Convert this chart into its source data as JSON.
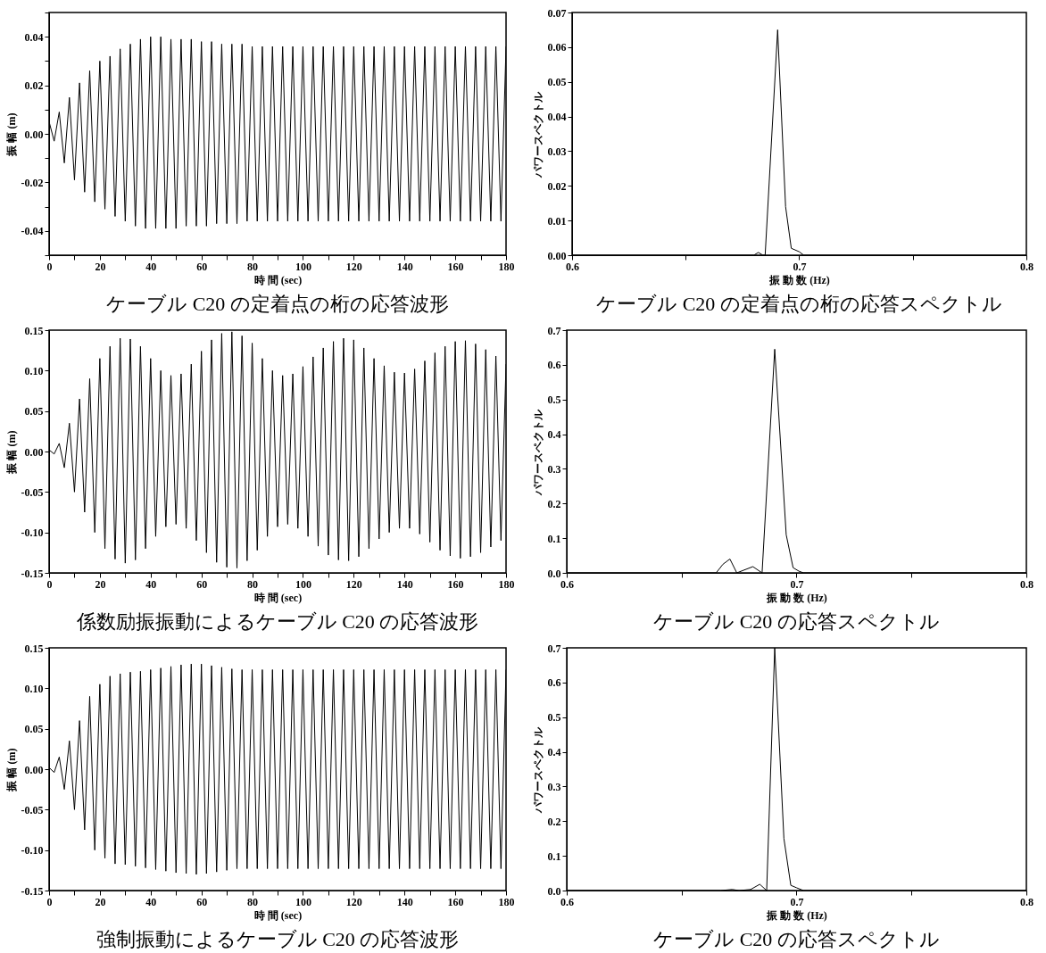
{
  "chart_data": [
    {
      "type": "line",
      "title": "ケーブル C20 の定着点の桁の応答波形",
      "xlabel": "時 間 (sec)",
      "ylabel": "振 幅 (m)",
      "xlim": [
        0,
        180
      ],
      "xticks": [
        0,
        {
          "value": 10,
          "label": null
        },
        20,
        {
          "value": 30,
          "label": null
        },
        40,
        {
          "value": 50,
          "label": null
        },
        60,
        {
          "value": 70,
          "label": null
        },
        80,
        {
          "value": 90,
          "label": null
        },
        100,
        {
          "value": 110,
          "label": null
        },
        120,
        {
          "value": 130,
          "label": null
        },
        140,
        {
          "value": 150,
          "label": null
        },
        160,
        {
          "value": 170,
          "label": null
        },
        180
      ],
      "ylim": [
        -0.05,
        0.05
      ],
      "yticks": [
        {
          "value": -0.05,
          "label": null
        },
        -0.04,
        {
          "value": -0.03,
          "label": null
        },
        -0.02,
        {
          "value": -0.01,
          "label": null
        },
        {
          "value": 0,
          "label": "0.00"
        },
        {
          "value": 0.01,
          "label": null
        },
        0.02,
        {
          "value": 0.03,
          "label": null
        },
        0.04,
        {
          "value": 0.05,
          "label": null
        }
      ],
      "x": [
        0,
        2,
        4,
        6,
        8,
        10,
        12,
        14,
        16,
        18,
        20,
        22,
        24,
        26,
        28,
        30,
        32,
        34,
        36,
        38,
        40,
        42,
        44,
        46,
        48,
        50,
        52,
        54,
        56,
        58,
        60,
        62,
        64,
        66,
        68,
        70,
        72,
        74,
        76,
        78,
        80,
        82,
        84,
        86,
        88,
        90,
        92,
        94,
        96,
        98,
        100,
        102,
        104,
        106,
        108,
        110,
        112,
        114,
        116,
        118,
        120,
        122,
        124,
        126,
        128,
        130,
        132,
        134,
        136,
        138,
        140,
        142,
        144,
        146,
        148,
        150,
        152,
        154,
        156,
        158,
        160,
        162,
        164,
        166,
        168,
        170,
        172,
        174,
        176,
        178,
        180
      ],
      "series": [
        {
          "color": "#000000",
          "values": [
            0.005,
            -0.003,
            0.009,
            -0.012,
            0.015,
            -0.019,
            0.021,
            -0.024,
            0.026,
            -0.028,
            0.03,
            -0.031,
            0.032,
            -0.034,
            0.035,
            -0.036,
            0.037,
            -0.038,
            0.039,
            -0.039,
            0.04,
            -0.039,
            0.04,
            -0.039,
            0.039,
            -0.039,
            0.039,
            -0.038,
            0.039,
            -0.038,
            0.038,
            -0.038,
            0.038,
            -0.037,
            0.037,
            -0.037,
            0.037,
            -0.037,
            0.037,
            -0.036,
            0.036,
            -0.036,
            0.036,
            -0.036,
            0.036,
            -0.036,
            0.036,
            -0.036,
            0.036,
            -0.036,
            0.036,
            -0.036,
            0.036,
            -0.036,
            0.036,
            -0.036,
            0.036,
            -0.036,
            0.036,
            -0.036,
            0.036,
            -0.036,
            0.036,
            -0.036,
            0.036,
            -0.036,
            0.036,
            -0.036,
            0.036,
            -0.036,
            0.036,
            -0.036,
            0.036,
            -0.036,
            0.036,
            -0.036,
            0.036,
            -0.036,
            0.036,
            -0.036,
            0.036,
            -0.036,
            0.036,
            -0.036,
            0.036,
            -0.036,
            0.036,
            -0.036,
            0.036,
            -0.036,
            0.036
          ]
        }
      ]
    },
    {
      "type": "line",
      "title": "ケーブル C20 の定着点の桁の応答スペクトル",
      "xlabel": "振 動 数 (Hz)",
      "ylabel": "パワースペクトル",
      "xlim": [
        0.6,
        0.8
      ],
      "xticks": [
        0.6,
        {
          "value": 0.65,
          "label": null
        },
        0.7,
        {
          "value": 0.75,
          "label": null
        },
        0.8
      ],
      "ylim": [
        0,
        0.07
      ],
      "yticks": [
        {
          "value": 0,
          "label": "0.00"
        },
        {
          "value": 0.01,
          "label": "0.01"
        },
        {
          "value": 0.02,
          "label": "0.02"
        },
        {
          "value": 0.03,
          "label": "0.03"
        },
        {
          "value": 0.04,
          "label": "0.04"
        },
        {
          "value": 0.05,
          "label": "0.05"
        },
        {
          "value": 0.06,
          "label": "0.06"
        },
        {
          "value": 0.07,
          "label": "0.07"
        }
      ],
      "x": [
        0.6,
        0.68,
        0.682,
        0.684,
        0.685,
        0.6905,
        0.694,
        0.6965,
        0.7,
        0.702,
        0.8
      ],
      "series": [
        {
          "color": "#000000",
          "values": [
            0,
            0,
            0.0008,
            0,
            0,
            0.065,
            0.014,
            0.002,
            0.001,
            0,
            0
          ]
        }
      ]
    },
    {
      "type": "line",
      "title": "係数励振振動によるケーブル C20 の応答波形",
      "xlabel": "時 間 (sec)",
      "ylabel": "振 幅 (m)",
      "xlim": [
        0,
        180
      ],
      "xticks": [
        0,
        {
          "value": 10,
          "label": null
        },
        20,
        {
          "value": 30,
          "label": null
        },
        40,
        {
          "value": 50,
          "label": null
        },
        60,
        {
          "value": 70,
          "label": null
        },
        80,
        {
          "value": 90,
          "label": null
        },
        100,
        {
          "value": 110,
          "label": null
        },
        120,
        {
          "value": 130,
          "label": null
        },
        140,
        {
          "value": 150,
          "label": null
        },
        160,
        {
          "value": 170,
          "label": null
        },
        180
      ],
      "ylim": [
        -0.15,
        0.15
      ],
      "yticks": [
        -0.15,
        {
          "value": -0.1,
          "label": "-0.10"
        },
        -0.05,
        {
          "value": 0,
          "label": "0.00"
        },
        0.05,
        {
          "value": 0.1,
          "label": "0.10"
        },
        0.15
      ],
      "x": [
        0,
        2,
        4,
        6,
        8,
        10,
        12,
        14,
        16,
        18,
        20,
        22,
        24,
        26,
        28,
        30,
        32,
        34,
        36,
        38,
        40,
        42,
        44,
        46,
        48,
        50,
        52,
        54,
        56,
        58,
        60,
        62,
        64,
        66,
        68,
        70,
        72,
        74,
        76,
        78,
        80,
        82,
        84,
        86,
        88,
        90,
        92,
        94,
        96,
        98,
        100,
        102,
        104,
        106,
        108,
        110,
        112,
        114,
        116,
        118,
        120,
        122,
        124,
        126,
        128,
        130,
        132,
        134,
        136,
        138,
        140,
        142,
        144,
        146,
        148,
        150,
        152,
        154,
        156,
        158,
        160,
        162,
        164,
        166,
        168,
        170,
        172,
        174,
        176,
        178,
        180
      ],
      "series": [
        {
          "color": "#000000",
          "values": [
            0.002,
            -0.003,
            0.01,
            -0.02,
            0.035,
            -0.05,
            0.065,
            -0.075,
            0.09,
            -0.1,
            0.115,
            -0.12,
            0.13,
            -0.133,
            0.14,
            -0.138,
            0.139,
            -0.134,
            0.13,
            -0.12,
            0.115,
            -0.105,
            0.1,
            -0.093,
            0.094,
            -0.09,
            0.096,
            -0.095,
            0.108,
            -0.11,
            0.124,
            -0.125,
            0.138,
            -0.137,
            0.146,
            -0.143,
            0.148,
            -0.144,
            0.143,
            -0.135,
            0.134,
            -0.122,
            0.115,
            -0.105,
            0.1,
            -0.093,
            0.094,
            -0.09,
            0.096,
            -0.095,
            0.105,
            -0.105,
            0.117,
            -0.117,
            0.128,
            -0.128,
            0.136,
            -0.134,
            0.14,
            -0.135,
            0.138,
            -0.13,
            0.128,
            -0.12,
            0.115,
            -0.108,
            0.106,
            -0.1,
            0.098,
            -0.095,
            0.097,
            -0.095,
            0.102,
            -0.102,
            0.112,
            -0.112,
            0.122,
            -0.122,
            0.13,
            -0.129,
            0.136,
            -0.132,
            0.137,
            -0.13,
            0.133,
            -0.125,
            0.126,
            -0.118,
            0.118,
            -0.11,
            0.108
          ]
        }
      ]
    },
    {
      "type": "line",
      "title": "ケーブル C20 の応答スペクトル",
      "xlabel": "振 動 数 (Hz)",
      "ylabel": "パワースペクトル",
      "xlim": [
        0.6,
        0.8
      ],
      "xticks": [
        0.6,
        {
          "value": 0.65,
          "label": null
        },
        0.7,
        {
          "value": 0.75,
          "label": null
        },
        0.8
      ],
      "ylim": [
        0,
        0.7
      ],
      "yticks": [
        {
          "value": 0,
          "label": "0.0"
        },
        0.1,
        0.2,
        0.3,
        0.4,
        0.5,
        0.6,
        0.7
      ],
      "x": [
        0.6,
        0.665,
        0.668,
        0.671,
        0.674,
        0.681,
        0.685,
        0.6905,
        0.6955,
        0.6985,
        0.701,
        0.703,
        0.8
      ],
      "series": [
        {
          "color": "#000000",
          "values": [
            0,
            0,
            0.025,
            0.04,
            0,
            0.018,
            0,
            0.645,
            0.11,
            0.015,
            0.005,
            0,
            0
          ]
        }
      ]
    },
    {
      "type": "line",
      "title": "強制振動によるケーブル C20 の応答波形",
      "xlabel": "時 間 (sec)",
      "ylabel": "振 幅 (m)",
      "xlim": [
        0,
        180
      ],
      "xticks": [
        0,
        {
          "value": 10,
          "label": null
        },
        20,
        {
          "value": 30,
          "label": null
        },
        40,
        {
          "value": 50,
          "label": null
        },
        60,
        {
          "value": 70,
          "label": null
        },
        80,
        {
          "value": 90,
          "label": null
        },
        100,
        {
          "value": 110,
          "label": null
        },
        120,
        {
          "value": 130,
          "label": null
        },
        140,
        {
          "value": 150,
          "label": null
        },
        160,
        {
          "value": 170,
          "label": null
        },
        180
      ],
      "ylim": [
        -0.15,
        0.15
      ],
      "yticks": [
        -0.15,
        {
          "value": -0.1,
          "label": "-0.10"
        },
        -0.05,
        {
          "value": 0,
          "label": "0.00"
        },
        0.05,
        {
          "value": 0.1,
          "label": "0.10"
        },
        0.15
      ],
      "x": [
        0,
        2,
        4,
        6,
        8,
        10,
        12,
        14,
        16,
        18,
        20,
        22,
        24,
        26,
        28,
        30,
        32,
        34,
        36,
        38,
        40,
        42,
        44,
        46,
        48,
        50,
        52,
        54,
        56,
        58,
        60,
        62,
        64,
        66,
        68,
        70,
        72,
        74,
        76,
        78,
        80,
        82,
        84,
        86,
        88,
        90,
        92,
        94,
        96,
        98,
        100,
        102,
        104,
        106,
        108,
        110,
        112,
        114,
        116,
        118,
        120,
        122,
        124,
        126,
        128,
        130,
        132,
        134,
        136,
        138,
        140,
        142,
        144,
        146,
        148,
        150,
        152,
        154,
        156,
        158,
        160,
        162,
        164,
        166,
        168,
        170,
        172,
        174,
        176,
        178,
        180
      ],
      "series": [
        {
          "color": "#000000",
          "values": [
            0.002,
            -0.004,
            0.015,
            -0.025,
            0.035,
            -0.05,
            0.06,
            -0.075,
            0.09,
            -0.1,
            0.105,
            -0.11,
            0.115,
            -0.117,
            0.118,
            -0.118,
            0.12,
            -0.12,
            0.121,
            -0.122,
            0.123,
            -0.124,
            0.125,
            -0.126,
            0.127,
            -0.128,
            0.129,
            -0.129,
            0.13,
            -0.13,
            0.13,
            -0.129,
            0.128,
            -0.127,
            0.126,
            -0.125,
            0.124,
            -0.123,
            0.123,
            -0.123,
            0.123,
            -0.123,
            0.123,
            -0.123,
            0.123,
            -0.123,
            0.123,
            -0.123,
            0.123,
            -0.123,
            0.123,
            -0.123,
            0.123,
            -0.123,
            0.123,
            -0.123,
            0.123,
            -0.123,
            0.123,
            -0.123,
            0.123,
            -0.123,
            0.123,
            -0.123,
            0.123,
            -0.123,
            0.123,
            -0.123,
            0.123,
            -0.123,
            0.123,
            -0.123,
            0.123,
            -0.123,
            0.123,
            -0.123,
            0.123,
            -0.123,
            0.123,
            -0.123,
            0.123,
            -0.123,
            0.123,
            -0.123,
            0.123,
            -0.123,
            0.123,
            -0.123,
            0.123,
            -0.123,
            0.123
          ]
        }
      ]
    },
    {
      "type": "line",
      "title": "ケーブル C20 の応答スペクトル",
      "xlabel": "振 動 数 (Hz)",
      "ylabel": "パワースペクトル",
      "xlim": [
        0.6,
        0.8
      ],
      "xticks": [
        0.6,
        {
          "value": 0.65,
          "label": null
        },
        0.7,
        {
          "value": 0.75,
          "label": null
        },
        0.8
      ],
      "ylim": [
        0,
        0.7
      ],
      "yticks": [
        {
          "value": 0,
          "label": "0.0"
        },
        0.1,
        0.2,
        0.3,
        0.4,
        0.5,
        0.6,
        0.7
      ],
      "x": [
        0.6,
        0.667,
        0.672,
        0.675,
        0.68,
        0.684,
        0.687,
        0.6905,
        0.6945,
        0.6975,
        0.7,
        0.703,
        0.8
      ],
      "series": [
        {
          "color": "#000000",
          "values": [
            0,
            0,
            0.003,
            0,
            0.003,
            0.018,
            0,
            0.7,
            0.15,
            0.015,
            0.008,
            0,
            0
          ]
        }
      ]
    }
  ]
}
